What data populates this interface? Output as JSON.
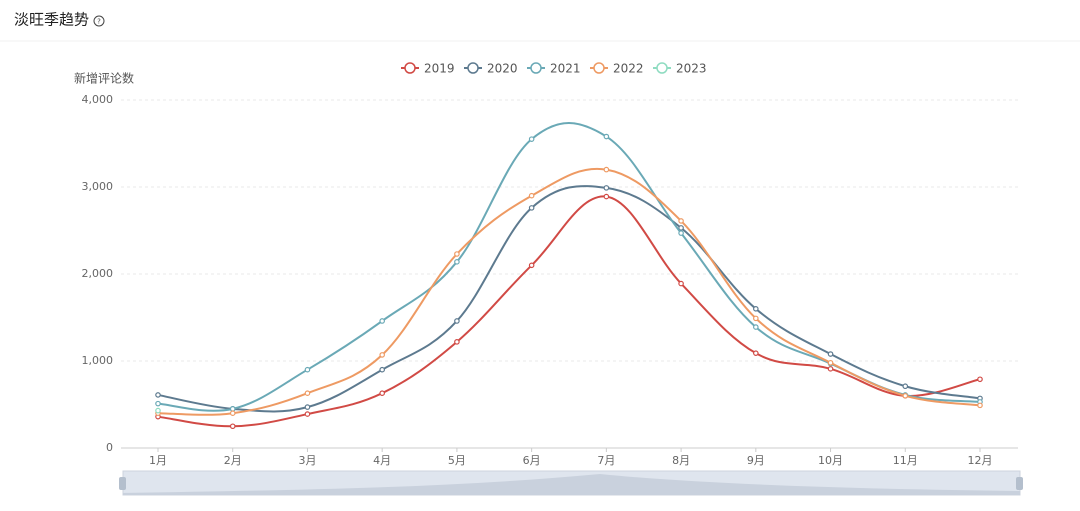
{
  "chart_data": {
    "type": "line",
    "title": "淡旺季趋势",
    "y_label": "新增评论数",
    "categories": [
      "1月",
      "2月",
      "3月",
      "4月",
      "5月",
      "6月",
      "7月",
      "8月",
      "9月",
      "10月",
      "11月",
      "12月"
    ],
    "series": [
      {
        "name": "2019",
        "color": "#d14a45",
        "values": [
          360,
          250,
          390,
          630,
          1220,
          2100,
          2890,
          1890,
          1090,
          910,
          600,
          790
        ]
      },
      {
        "name": "2020",
        "color": "#5d7a8f",
        "values": [
          610,
          450,
          470,
          900,
          1460,
          2760,
          2990,
          2530,
          1600,
          1080,
          710,
          570
        ]
      },
      {
        "name": "2021",
        "color": "#6aa9b6",
        "values": [
          510,
          450,
          900,
          1460,
          2140,
          3550,
          3580,
          2470,
          1390,
          970,
          610,
          530
        ]
      },
      {
        "name": "2022",
        "color": "#ee9a63",
        "values": [
          400,
          400,
          630,
          1070,
          2230,
          2900,
          3200,
          2610,
          1490,
          980,
          600,
          490
        ]
      },
      {
        "name": "2023",
        "color": "#8fdcc1",
        "values": [
          430,
          null,
          null,
          null,
          null,
          null,
          null,
          null,
          null,
          null,
          null,
          null
        ]
      }
    ],
    "ylim": [
      0,
      4000
    ],
    "yticks": [
      0,
      {
        "value": 1000,
        "label": "1,000"
      },
      {
        "value": 2000,
        "label": "2,000"
      },
      {
        "value": 3000,
        "label": "3,000"
      },
      {
        "value": 4000,
        "label": "4,000"
      }
    ],
    "grid": true,
    "legend": "top"
  }
}
